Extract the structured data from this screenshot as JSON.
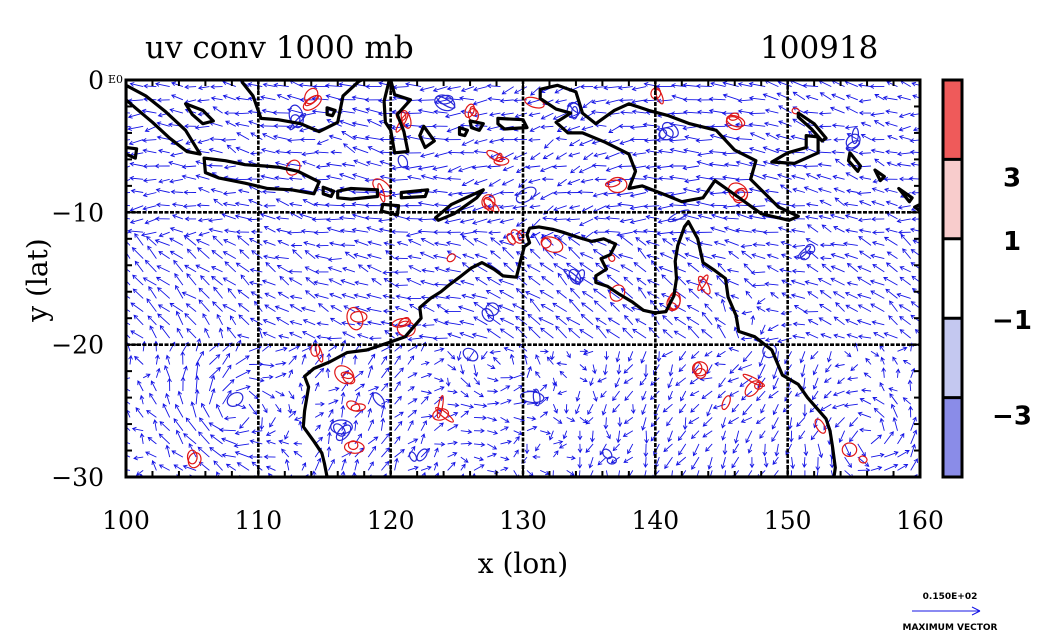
{
  "chart_data": {
    "type": "vector_field_with_contours",
    "title_left": "uv conv 1000 mb",
    "title_right": "100918",
    "xlabel": "x (lon)",
    "ylabel": "y (lat)",
    "xlim": [
      100,
      160
    ],
    "ylim": [
      -30,
      0
    ],
    "x_ticks": [
      {
        "value": 100,
        "label": "100"
      },
      {
        "value": 110,
        "label": "110"
      },
      {
        "value": 120,
        "label": "120"
      },
      {
        "value": 130,
        "label": "130"
      },
      {
        "value": 140,
        "label": "140"
      },
      {
        "value": 150,
        "label": "150"
      },
      {
        "value": 160,
        "label": "160"
      }
    ],
    "y_ticks": [
      {
        "value": 0,
        "label": "0"
      },
      {
        "value": -10,
        "label": "−10"
      },
      {
        "value": -20,
        "label": "−20"
      },
      {
        "value": -30,
        "label": "−30"
      }
    ],
    "y_tick_extra": "E0",
    "gridlines_x": [
      110,
      120,
      130,
      140,
      150
    ],
    "gridlines_y": [
      -10,
      -20
    ],
    "grid": true,
    "colorbar": {
      "position": "right",
      "levels": [
        {
          "from": 3,
          "to": 5,
          "color": "#ef5a5a"
        },
        {
          "from": 1,
          "to": 3,
          "color": "#f8cccc"
        },
        {
          "from": -1,
          "to": 1,
          "color": "#ffffff"
        },
        {
          "from": -3,
          "to": -1,
          "color": "#c4c8f0"
        },
        {
          "from": -5,
          "to": -3,
          "color": "#8a8ce8"
        }
      ],
      "tick_labels": [
        {
          "value": 3,
          "label": "3"
        },
        {
          "value": 1,
          "label": "1"
        },
        {
          "value": -1,
          "label": "−1"
        },
        {
          "value": -3,
          "label": "−3"
        }
      ],
      "range": [
        -5,
        5
      ]
    },
    "vector_color": "#1414e6",
    "positive_contour_color": "#e01818",
    "negative_contour_color": "#2828d8",
    "coastline_color": "#000000",
    "reference_vector": {
      "value_label": "0.150E+02",
      "caption": "MAXIMUM VECTOR"
    },
    "positive_contour_centers": [
      [
        114,
        -1.5
      ],
      [
        121,
        -3
      ],
      [
        126,
        -2.5
      ],
      [
        131,
        -1.5
      ],
      [
        140,
        -1
      ],
      [
        146,
        -3
      ],
      [
        150.5,
        -2.5
      ],
      [
        128,
        -6
      ],
      [
        137,
        -8
      ],
      [
        146.5,
        -8.5
      ],
      [
        125,
        -13.5
      ],
      [
        129.5,
        -12
      ],
      [
        132,
        -12.5
      ],
      [
        136.5,
        -13.5
      ],
      [
        137.5,
        -16
      ],
      [
        141.5,
        -17
      ],
      [
        143.5,
        -15.5
      ],
      [
        121,
        -18.5
      ],
      [
        117.5,
        -18
      ],
      [
        114.5,
        -20.5
      ],
      [
        116.5,
        -22.5
      ],
      [
        117.5,
        -24.5
      ],
      [
        117,
        -27.5
      ],
      [
        124,
        -25
      ],
      [
        143.5,
        -22
      ],
      [
        145.5,
        -24.5
      ],
      [
        147.5,
        -23
      ],
      [
        152.5,
        -26
      ],
      [
        154.5,
        -27.8
      ],
      [
        156,
        -28.5
      ],
      [
        105,
        -28.5
      ],
      [
        112.5,
        -6.5
      ],
      [
        119.5,
        -8.5
      ],
      [
        127.5,
        -9.5
      ]
    ],
    "negative_contour_centers": [
      [
        113,
        -3
      ],
      [
        124,
        -1.5
      ],
      [
        134,
        -2.5
      ],
      [
        141,
        -4
      ],
      [
        155,
        -4.5
      ],
      [
        121,
        -6.5
      ],
      [
        130,
        -9
      ],
      [
        134,
        -15
      ],
      [
        127.5,
        -17.5
      ],
      [
        126,
        -21
      ],
      [
        119,
        -24.5
      ],
      [
        122,
        -28.5
      ],
      [
        136.5,
        -28.5
      ],
      [
        148.5,
        -20.5
      ],
      [
        116.5,
        -26.5
      ],
      [
        142,
        -10
      ],
      [
        151.5,
        -13
      ],
      [
        108,
        -24
      ],
      [
        131,
        -24
      ]
    ],
    "coastlines": [
      [
        [
          100,
          -0.4
        ],
        [
          101.5,
          -1.2
        ],
        [
          103,
          -2.4
        ],
        [
          104.5,
          -3.8
        ],
        [
          105.6,
          -5.6
        ],
        [
          104.6,
          -5.4
        ],
        [
          103.3,
          -4.4
        ],
        [
          102,
          -3.2
        ],
        [
          100.7,
          -2.1
        ],
        [
          100,
          -1.5
        ]
      ],
      [
        [
          104.5,
          -1.8
        ],
        [
          105.8,
          -2.3
        ],
        [
          106.6,
          -3.1
        ],
        [
          105.8,
          -3.3
        ],
        [
          105,
          -2.6
        ]
      ],
      [
        [
          108.8,
          -0.2
        ],
        [
          109.6,
          -1.2
        ],
        [
          110.2,
          -2.9
        ],
        [
          111.5,
          -3
        ],
        [
          113.2,
          -3.3
        ],
        [
          114.6,
          -3.9
        ],
        [
          116,
          -3.2
        ],
        [
          116.4,
          -1.2
        ],
        [
          117.6,
          -0.1
        ],
        [
          117.8,
          0
        ],
        [
          108.8,
          0
        ]
      ],
      [
        [
          105.9,
          -5.9
        ],
        [
          107.5,
          -6.1
        ],
        [
          109,
          -6.4
        ],
        [
          110.5,
          -6.5
        ],
        [
          111.6,
          -6.6
        ],
        [
          113,
          -6.9
        ],
        [
          114.6,
          -7.7
        ],
        [
          114.2,
          -8.6
        ],
        [
          112.5,
          -8.3
        ],
        [
          110.7,
          -8.2
        ],
        [
          109,
          -7.8
        ],
        [
          107,
          -7.4
        ],
        [
          106,
          -7
        ]
      ],
      [
        [
          114.9,
          -8.1
        ],
        [
          115.7,
          -8.4
        ],
        [
          115.5,
          -8.8
        ],
        [
          114.9,
          -8.6
        ]
      ],
      [
        [
          116,
          -8.4
        ],
        [
          117,
          -8.2
        ],
        [
          119,
          -8.3
        ],
        [
          119,
          -8.8
        ],
        [
          117,
          -9
        ],
        [
          116,
          -8.9
        ]
      ],
      [
        [
          119.4,
          -9.4
        ],
        [
          120.6,
          -9.5
        ],
        [
          120.5,
          -10.2
        ],
        [
          119.3,
          -9.9
        ]
      ],
      [
        [
          120.8,
          -8.5
        ],
        [
          122.8,
          -8.3
        ],
        [
          122.6,
          -8.8
        ],
        [
          120.8,
          -8.9
        ]
      ],
      [
        [
          123.4,
          -10.4
        ],
        [
          124.6,
          -9.4
        ],
        [
          127,
          -8.3
        ],
        [
          126.5,
          -8.9
        ],
        [
          124.8,
          -10.1
        ],
        [
          123.6,
          -10.6
        ]
      ],
      [
        [
          120,
          0
        ],
        [
          120.3,
          -1.1
        ],
        [
          121.5,
          -1.5
        ],
        [
          120.5,
          -2.6
        ],
        [
          121,
          -3.9
        ],
        [
          121.3,
          -5.4
        ],
        [
          120.3,
          -5.5
        ],
        [
          120,
          -3.8
        ],
        [
          119.6,
          -3.2
        ],
        [
          119.5,
          -1.6
        ],
        [
          119.9,
          0
        ]
      ],
      [
        [
          122.5,
          -3.5
        ],
        [
          123.3,
          -4.6
        ],
        [
          122.6,
          -5.1
        ],
        [
          122.2,
          -4.2
        ]
      ],
      [
        [
          126,
          -3.1
        ],
        [
          127,
          -3.3
        ],
        [
          126.7,
          -3.8
        ],
        [
          126.1,
          -3.6
        ]
      ],
      [
        [
          128.1,
          -2.9
        ],
        [
          130,
          -3
        ],
        [
          130.3,
          -3.6
        ],
        [
          128.6,
          -3.7
        ],
        [
          128.1,
          -3.3
        ]
      ],
      [
        [
          131.3,
          -0.7
        ],
        [
          132.6,
          -0.4
        ],
        [
          134,
          -0.9
        ],
        [
          134.5,
          -2.5
        ],
        [
          135.5,
          -3.3
        ],
        [
          136.9,
          -2.3
        ],
        [
          138,
          -1.8
        ],
        [
          139.5,
          -2.3
        ],
        [
          141,
          -2.7
        ],
        [
          142.6,
          -3.3
        ],
        [
          144.6,
          -3.8
        ],
        [
          146,
          -5.3
        ],
        [
          147.6,
          -6.1
        ],
        [
          147.2,
          -7.5
        ],
        [
          148.3,
          -8.6
        ],
        [
          149.3,
          -9.6
        ],
        [
          150.8,
          -10.3
        ],
        [
          150.1,
          -10.6
        ],
        [
          148,
          -10.1
        ],
        [
          146.2,
          -8.8
        ],
        [
          144.5,
          -7.6
        ],
        [
          143.6,
          -8.9
        ],
        [
          142,
          -9.2
        ],
        [
          140.8,
          -8.7
        ],
        [
          139,
          -8
        ],
        [
          138,
          -8.2
        ],
        [
          138.5,
          -6.9
        ],
        [
          138,
          -5.6
        ],
        [
          136.2,
          -4.7
        ],
        [
          134.5,
          -4
        ],
        [
          133.4,
          -4
        ],
        [
          132.5,
          -3.2
        ],
        [
          133.6,
          -2.5
        ],
        [
          132.5,
          -2.2
        ],
        [
          131.3,
          -1.4
        ]
      ],
      [
        [
          151.4,
          -4.2
        ],
        [
          152.3,
          -4.3
        ],
        [
          152.3,
          -5.5
        ],
        [
          150.5,
          -6.3
        ],
        [
          148.8,
          -6.2
        ],
        [
          150,
          -5.5
        ],
        [
          151.4,
          -5.1
        ]
      ],
      [
        [
          150.8,
          -2.5
        ],
        [
          152,
          -3.3
        ],
        [
          152.9,
          -4.4
        ],
        [
          152.6,
          -4.6
        ],
        [
          151.8,
          -3.7
        ],
        [
          150.8,
          -2.8
        ]
      ],
      [
        [
          154.7,
          -5.5
        ],
        [
          155.5,
          -6.5
        ],
        [
          155.3,
          -6.9
        ],
        [
          154.6,
          -6.1
        ]
      ],
      [
        [
          156.6,
          -6.8
        ],
        [
          157.3,
          -7.3
        ],
        [
          157,
          -7.6
        ]
      ],
      [
        [
          158.4,
          -8.2
        ],
        [
          159.4,
          -8.9
        ],
        [
          159.2,
          -9.2
        ]
      ],
      [
        [
          160,
          -9.4
        ],
        [
          159.6,
          -9.6
        ],
        [
          160,
          -9.9
        ]
      ],
      [
        [
          100,
          -5.1
        ],
        [
          100.8,
          -5.2
        ],
        [
          100.7,
          -5.9
        ],
        [
          100,
          -5.6
        ]
      ],
      [
        [
          125.2,
          -3.6
        ],
        [
          125.8,
          -3.8
        ],
        [
          125.6,
          -4.2
        ],
        [
          125.2,
          -4.1
        ]
      ],
      [
        [
          115.2,
          -2.1
        ],
        [
          115.8,
          -2.3
        ],
        [
          115.6,
          -2.7
        ],
        [
          115.2,
          -2.6
        ]
      ],
      [
        [
          130.5,
          -11.2
        ],
        [
          131.2,
          -11.1
        ],
        [
          132.3,
          -11.3
        ],
        [
          133,
          -11.5
        ],
        [
          134.2,
          -11.9
        ],
        [
          135.2,
          -12.2
        ],
        [
          136.1,
          -12
        ],
        [
          137,
          -12.4
        ],
        [
          136.6,
          -13.2
        ],
        [
          135.9,
          -13.5
        ],
        [
          136.3,
          -14.3
        ],
        [
          135.5,
          -14.8
        ],
        [
          135.5,
          -15.3
        ],
        [
          136.4,
          -15.6
        ],
        [
          137.3,
          -16.2
        ],
        [
          138.3,
          -16.8
        ],
        [
          139.1,
          -17.4
        ],
        [
          140,
          -17.6
        ],
        [
          140.8,
          -17.5
        ],
        [
          141.4,
          -16.3
        ],
        [
          141.6,
          -15
        ],
        [
          141.5,
          -13.7
        ],
        [
          141.7,
          -12.5
        ],
        [
          142.2,
          -11.1
        ],
        [
          142.5,
          -10.7
        ],
        [
          143.2,
          -12
        ],
        [
          143.6,
          -13.8
        ],
        [
          144.5,
          -14.4
        ],
        [
          145.3,
          -15
        ],
        [
          145.5,
          -16.4
        ],
        [
          146.1,
          -17.8
        ],
        [
          146.3,
          -19
        ],
        [
          147.5,
          -19.4
        ],
        [
          148.8,
          -20.4
        ],
        [
          149.6,
          -22.3
        ],
        [
          150.8,
          -23
        ],
        [
          151.5,
          -24
        ],
        [
          152.9,
          -25.6
        ],
        [
          153.2,
          -26.5
        ],
        [
          153.4,
          -27.8
        ],
        [
          153.6,
          -29.3
        ],
        [
          153.5,
          -30
        ],
        [
          115.2,
          -30
        ],
        [
          115,
          -29
        ],
        [
          114.8,
          -28.2
        ],
        [
          114.2,
          -27.3
        ],
        [
          113.4,
          -26.2
        ],
        [
          113.5,
          -25
        ],
        [
          113.8,
          -23.2
        ],
        [
          113.5,
          -22.4
        ],
        [
          114.2,
          -21.8
        ],
        [
          115.4,
          -21.3
        ],
        [
          116.7,
          -20.6
        ],
        [
          118.2,
          -20.4
        ],
        [
          119.7,
          -19.9
        ],
        [
          121.1,
          -19.4
        ],
        [
          122.3,
          -18
        ],
        [
          122.2,
          -17.2
        ],
        [
          123,
          -16.5
        ],
        [
          123.8,
          -16
        ],
        [
          124.4,
          -15.5
        ],
        [
          125.2,
          -14.9
        ],
        [
          126.1,
          -14.2
        ],
        [
          126.9,
          -13.8
        ],
        [
          127.8,
          -14.3
        ],
        [
          128.5,
          -14.8
        ],
        [
          129.5,
          -14.9
        ],
        [
          129.8,
          -13.7
        ],
        [
          130.1,
          -12.6
        ],
        [
          130.5,
          -12.3
        ],
        [
          130.3,
          -11.7
        ]
      ]
    ]
  }
}
